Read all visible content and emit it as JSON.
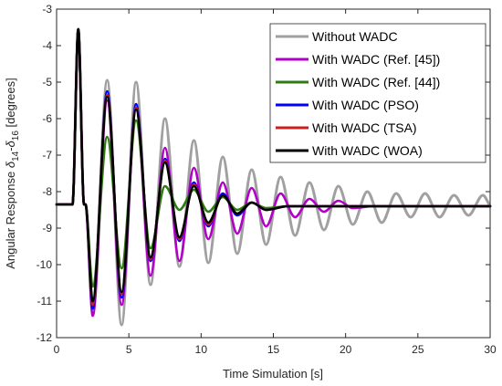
{
  "chart_data": {
    "type": "line",
    "title": "",
    "xlabel": "Time Simulation [s]",
    "ylabel": "Angular Response δ14 - δ16 [degrees]",
    "ylabel_parts": {
      "prefix": "Angular Response ",
      "sym1": "δ",
      "sub1": "14",
      "dash": "-",
      "sym2": "δ",
      "sub2": "16",
      "suffix": " [degrees]"
    },
    "xlim": [
      0,
      30
    ],
    "ylim": [
      -12,
      -3
    ],
    "xticks": [
      "0",
      "5",
      "10",
      "15",
      "20",
      "25",
      "30"
    ],
    "yticks": [
      "-3",
      "-4",
      "-5",
      "-6",
      "-7",
      "-8",
      "-9",
      "-10",
      "-11",
      "-12"
    ],
    "grid": false,
    "legend_position": "top-right",
    "series": [
      {
        "name": "Without WADC",
        "color": "#a0a0a0",
        "x": [
          0,
          1,
          1.1,
          1.5,
          1.9,
          2.0,
          2.5,
          3.5,
          4.5,
          5.5,
          6.5,
          7.5,
          8.5,
          9.5,
          10.5,
          11.5,
          12.5,
          13.5,
          14.5,
          15.5,
          16.5,
          17.5,
          18.5,
          19.5,
          20.5,
          21.5,
          22.5,
          23.5,
          24.5,
          25.5,
          26.5,
          27.5,
          28.5,
          29.5,
          30
        ],
        "y": [
          -8.35,
          -8.35,
          -8.35,
          -3.55,
          -8.35,
          -8.35,
          -11.2,
          -4.95,
          -11.65,
          -5.0,
          -10.55,
          -6.0,
          -10.05,
          -6.6,
          -9.95,
          -7.05,
          -9.7,
          -7.4,
          -9.45,
          -7.6,
          -9.2,
          -7.75,
          -9.05,
          -7.85,
          -8.9,
          -8.0,
          -8.85,
          -8.05,
          -8.7,
          -8.05,
          -8.7,
          -8.1,
          -8.65,
          -8.1,
          -8.4
        ]
      },
      {
        "name": "With WADC (Ref. [45])",
        "color": "#b200c8",
        "x": [
          0,
          1,
          1.1,
          1.5,
          1.9,
          2.0,
          2.5,
          3.5,
          4.5,
          5.5,
          6.5,
          7.5,
          8.5,
          9.5,
          10.5,
          11.5,
          12.5,
          13.5,
          14.5,
          15.5,
          16.5,
          17.5,
          18.5,
          19.5,
          20.5,
          22,
          30
        ],
        "y": [
          -8.35,
          -8.35,
          -8.35,
          -3.55,
          -8.35,
          -8.35,
          -11.4,
          -5.5,
          -11.1,
          -5.7,
          -10.3,
          -6.8,
          -9.9,
          -7.35,
          -9.3,
          -7.75,
          -9.15,
          -7.9,
          -8.95,
          -8.05,
          -8.7,
          -8.2,
          -8.55,
          -8.25,
          -8.45,
          -8.4,
          -8.4
        ]
      },
      {
        "name": "With WADC (Ref. [44])",
        "color": "#2e7d10",
        "x": [
          0,
          1,
          1.1,
          1.5,
          1.9,
          2.0,
          2.5,
          3.5,
          4.5,
          5.5,
          6.5,
          7.5,
          8.5,
          9.5,
          10.5,
          11.5,
          12.5,
          13.5,
          14.5,
          16,
          30
        ],
        "y": [
          -8.35,
          -8.35,
          -8.35,
          -3.55,
          -8.35,
          -8.35,
          -10.6,
          -6.5,
          -10.1,
          -6.05,
          -9.55,
          -7.85,
          -8.5,
          -7.95,
          -8.55,
          -8.15,
          -8.5,
          -8.3,
          -8.45,
          -8.4,
          -8.4
        ]
      },
      {
        "name": "With WADC (PSO)",
        "color": "#0000ff",
        "x": [
          0,
          1,
          1.1,
          1.5,
          1.9,
          2.0,
          2.5,
          3.5,
          4.5,
          5.5,
          6.5,
          7.5,
          8.5,
          9.5,
          10.5,
          11.5,
          12.5,
          13.5,
          14.5,
          16,
          30
        ],
        "y": [
          -8.35,
          -8.35,
          -8.35,
          -3.55,
          -8.35,
          -8.35,
          -11.2,
          -5.25,
          -10.9,
          -5.6,
          -9.9,
          -7.1,
          -9.35,
          -7.75,
          -8.95,
          -8.05,
          -8.65,
          -8.3,
          -8.5,
          -8.4,
          -8.4
        ]
      },
      {
        "name": "With WADC (TSA)",
        "color": "#c8201e",
        "x": [
          0,
          1,
          1.1,
          1.5,
          1.9,
          2.0,
          2.5,
          3.5,
          4.5,
          5.5,
          6.5,
          7.5,
          8.5,
          9.5,
          10.5,
          11.5,
          12.5,
          13.5,
          14.5,
          16,
          30
        ],
        "y": [
          -8.35,
          -8.35,
          -8.35,
          -3.55,
          -8.35,
          -8.35,
          -11.1,
          -5.35,
          -10.8,
          -5.7,
          -9.85,
          -7.15,
          -9.3,
          -7.8,
          -8.9,
          -8.1,
          -8.6,
          -8.3,
          -8.5,
          -8.4,
          -8.4
        ]
      },
      {
        "name": "With WADC (WOA)",
        "color": "#000000",
        "x": [
          0,
          1,
          1.1,
          1.5,
          1.9,
          2.0,
          2.5,
          3.5,
          4.5,
          5.5,
          6.5,
          7.5,
          8.5,
          9.5,
          10.5,
          11.5,
          12.5,
          13.5,
          14.5,
          16,
          30
        ],
        "y": [
          -8.35,
          -8.35,
          -8.35,
          -3.55,
          -8.35,
          -8.35,
          -11.0,
          -5.4,
          -10.75,
          -5.75,
          -9.8,
          -7.2,
          -9.25,
          -7.85,
          -8.85,
          -8.1,
          -8.6,
          -8.3,
          -8.5,
          -8.4,
          -8.4
        ]
      }
    ]
  }
}
